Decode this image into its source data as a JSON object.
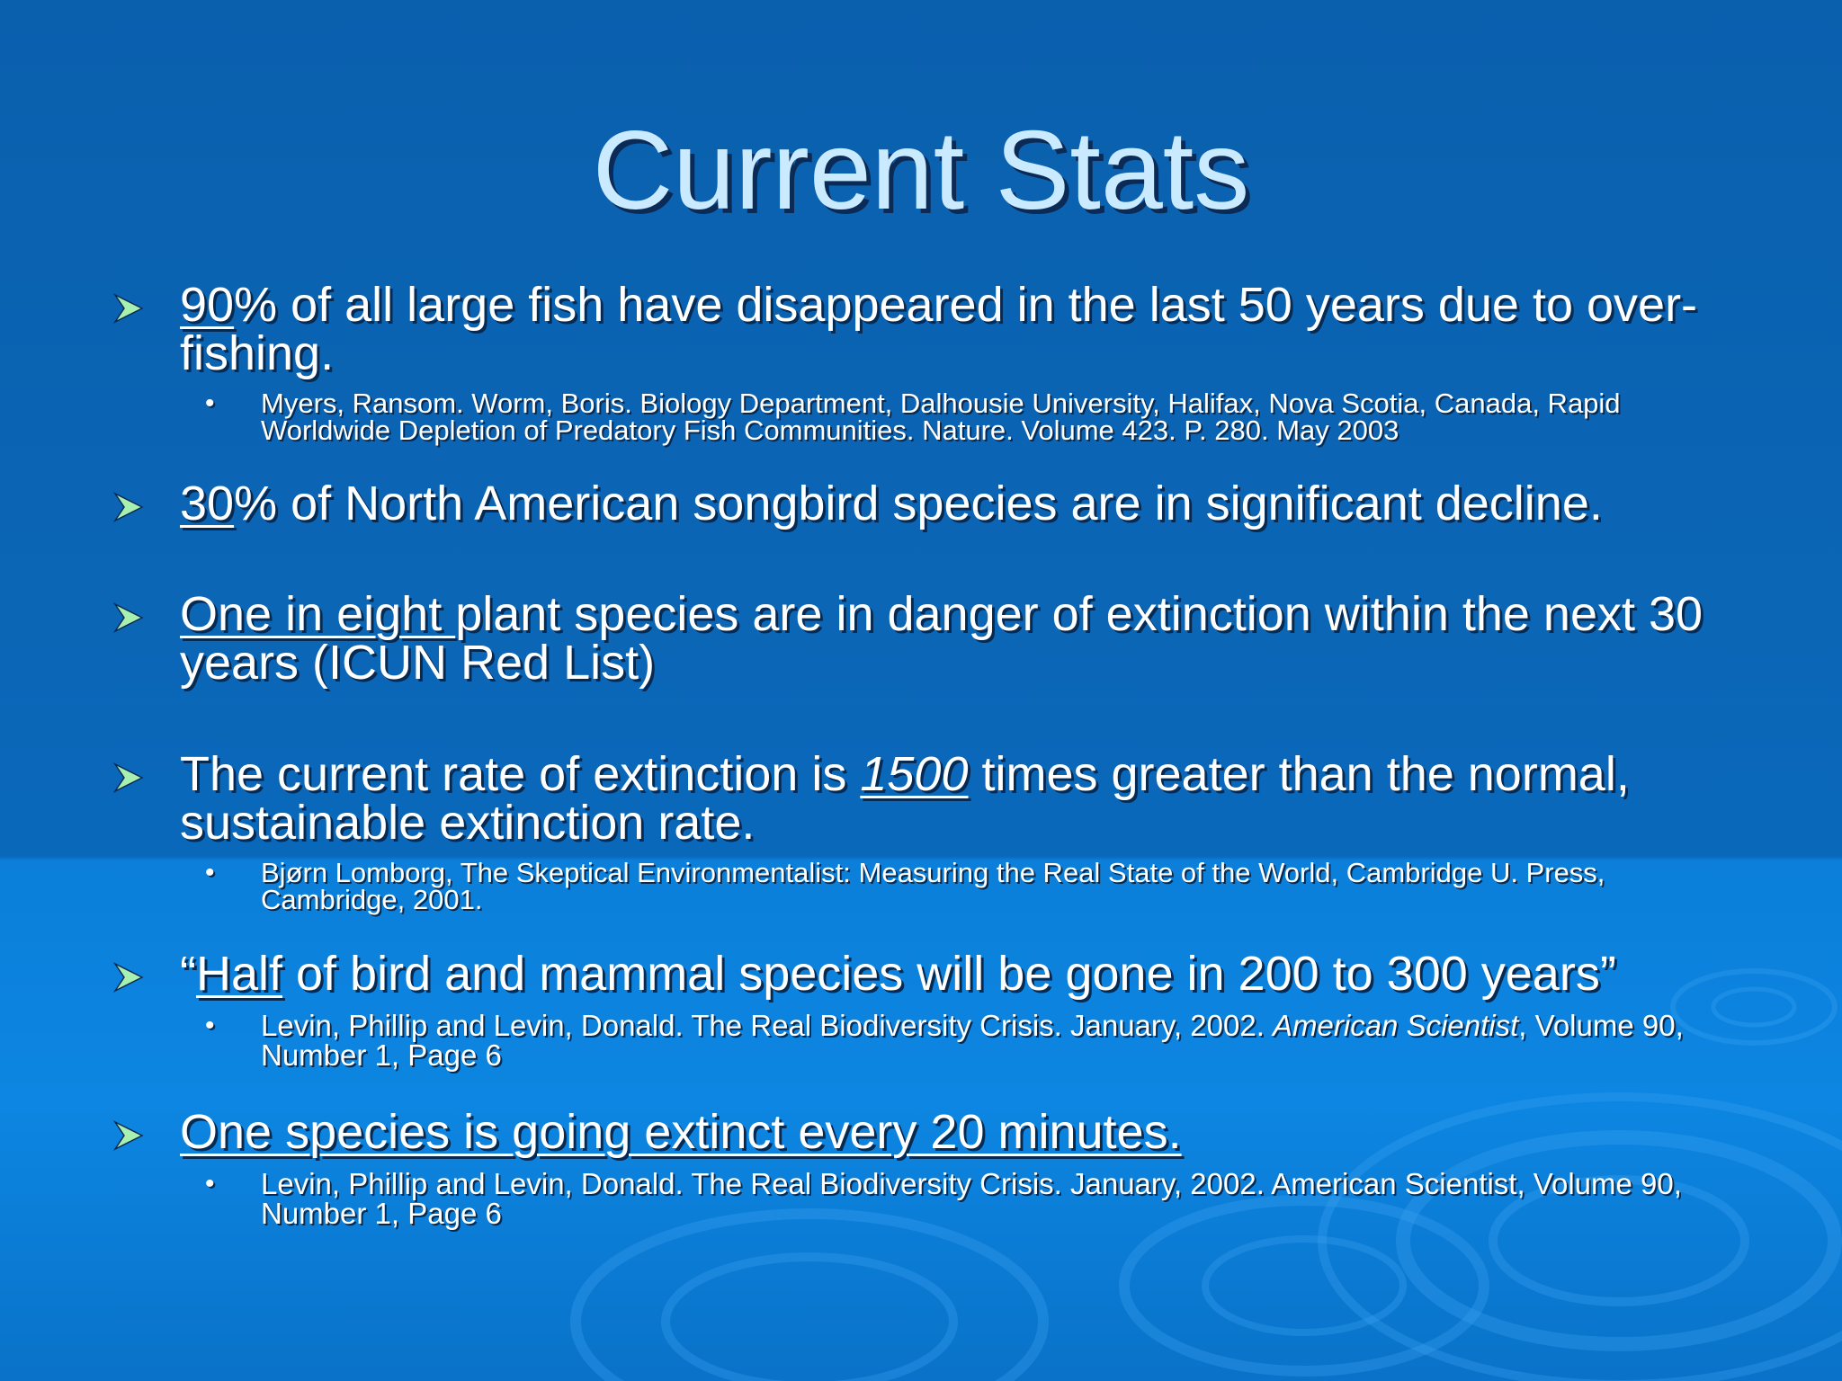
{
  "slide": {
    "title": "Current Stats",
    "bullets": [
      {
        "lead": "90",
        "text": "% of all large fish have disappeared in the last 50 years due to over-fishing.",
        "citation": "Myers, Ransom.  Worm, Boris.  Biology Department, Dalhousie University, Halifax, Nova Scotia, Canada, Rapid Worldwide Depletion of Predatory Fish Communities. Nature. Volume 423.  P. 280. May 2003"
      },
      {
        "lead": "30",
        "text": "% of North American songbird species are in significant decline."
      },
      {
        "lead": "One in eight ",
        "text": "plant species are in danger of extinction within the next 30 years (ICUN Red List)"
      },
      {
        "pre": "The current rate of extinction is ",
        "emph": "1500",
        "text": " times greater than the normal, sustainable extinction rate.",
        "citation": "Bjørn Lomborg, The Skeptical Environmentalist: Measuring the Real State of the World, Cambridge U. Press, Cambridge, 2001."
      },
      {
        "open_quote": "“",
        "lead": "Half",
        "text": " of bird and mammal species will be gone in 200 to 300 years”",
        "citation_pre": "Levin, Phillip and Levin, Donald.  The Real Biodiversity Crisis.  January, 2002.  ",
        "citation_journal": "American Scientist",
        "citation_post": ", Volume 90, Number 1, Page 6"
      },
      {
        "lead": "One species is going extinct every 20 minutes.",
        "citation": "Levin, Phillip and Levin, Donald.  The Real Biodiversity Crisis.  January, 2002.  American Scientist, Volume 90, Number 1, Page 6"
      }
    ]
  },
  "icons": {
    "bullet": "arrowhead-icon",
    "sub_bullet": "dot-icon",
    "decor": "ripple-decoration"
  },
  "colors": {
    "background": "#0b66b6",
    "title": "#c9eaff",
    "arrow": "#a8f0b0",
    "text": "#ffffff"
  }
}
